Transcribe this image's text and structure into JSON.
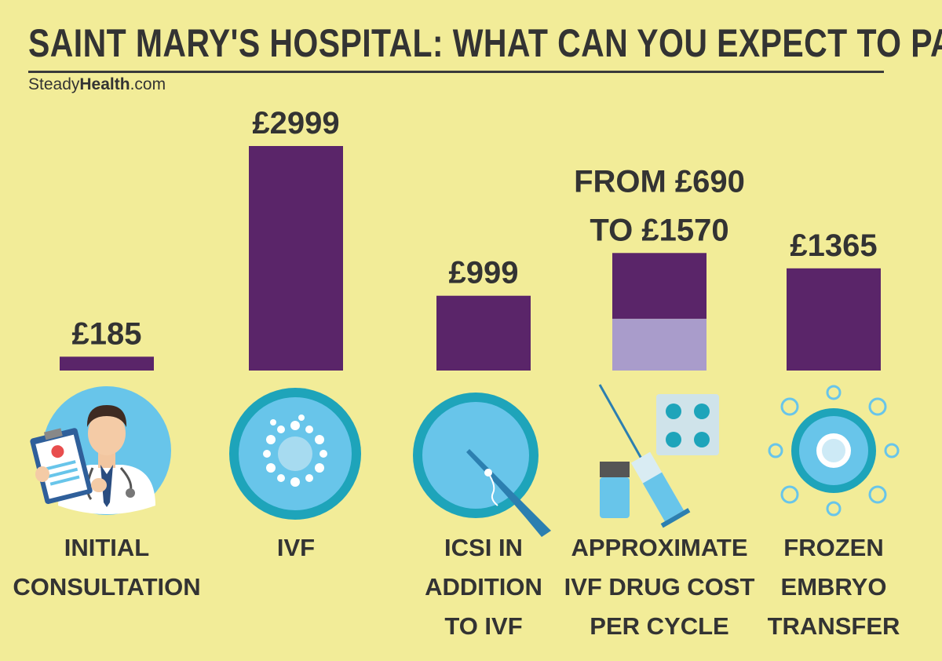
{
  "header": {
    "title": "SAINT MARY'S HOSPITAL: WHAT CAN YOU EXPECT TO PAY",
    "brand_light": "Steady",
    "brand_bold": "Health",
    "brand_suffix": ".com"
  },
  "colors": {
    "background": "#f2ec98",
    "bar": "#5a2569",
    "bar_range_low": "#a99ccb",
    "icon_blue": "#68c5ea",
    "icon_teal": "#1ea4ba",
    "text": "#333333"
  },
  "chart_data": {
    "type": "bar",
    "title": "SAINT MARY'S HOSPITAL: WHAT CAN YOU EXPECT TO PAY",
    "unit": "£",
    "categories": [
      [
        "INITIAL",
        "CONSULTATION"
      ],
      [
        "IVF"
      ],
      [
        "ICSI IN",
        "ADDITION",
        "TO IVF"
      ],
      [
        "APPROXIMATE",
        "IVF DRUG COST",
        "PER CYCLE"
      ],
      [
        "FROZEN",
        "EMBRYO",
        "TRANSFER"
      ]
    ],
    "series": [
      {
        "values": [
          185,
          2999,
          999,
          [
            690,
            1570
          ],
          1365
        ]
      }
    ],
    "value_labels": [
      [
        "£185"
      ],
      [
        "£2999"
      ],
      [
        "£999"
      ],
      [
        "FROM £690",
        "TO £1570"
      ],
      [
        "£1365"
      ]
    ],
    "icons": [
      "doctor-icon",
      "embryo-icon",
      "icsi-needle-icon",
      "syringe-pills-icon",
      "frozen-embryo-icon"
    ],
    "ylim": [
      0,
      2999
    ],
    "grid": false,
    "legend": "none"
  }
}
